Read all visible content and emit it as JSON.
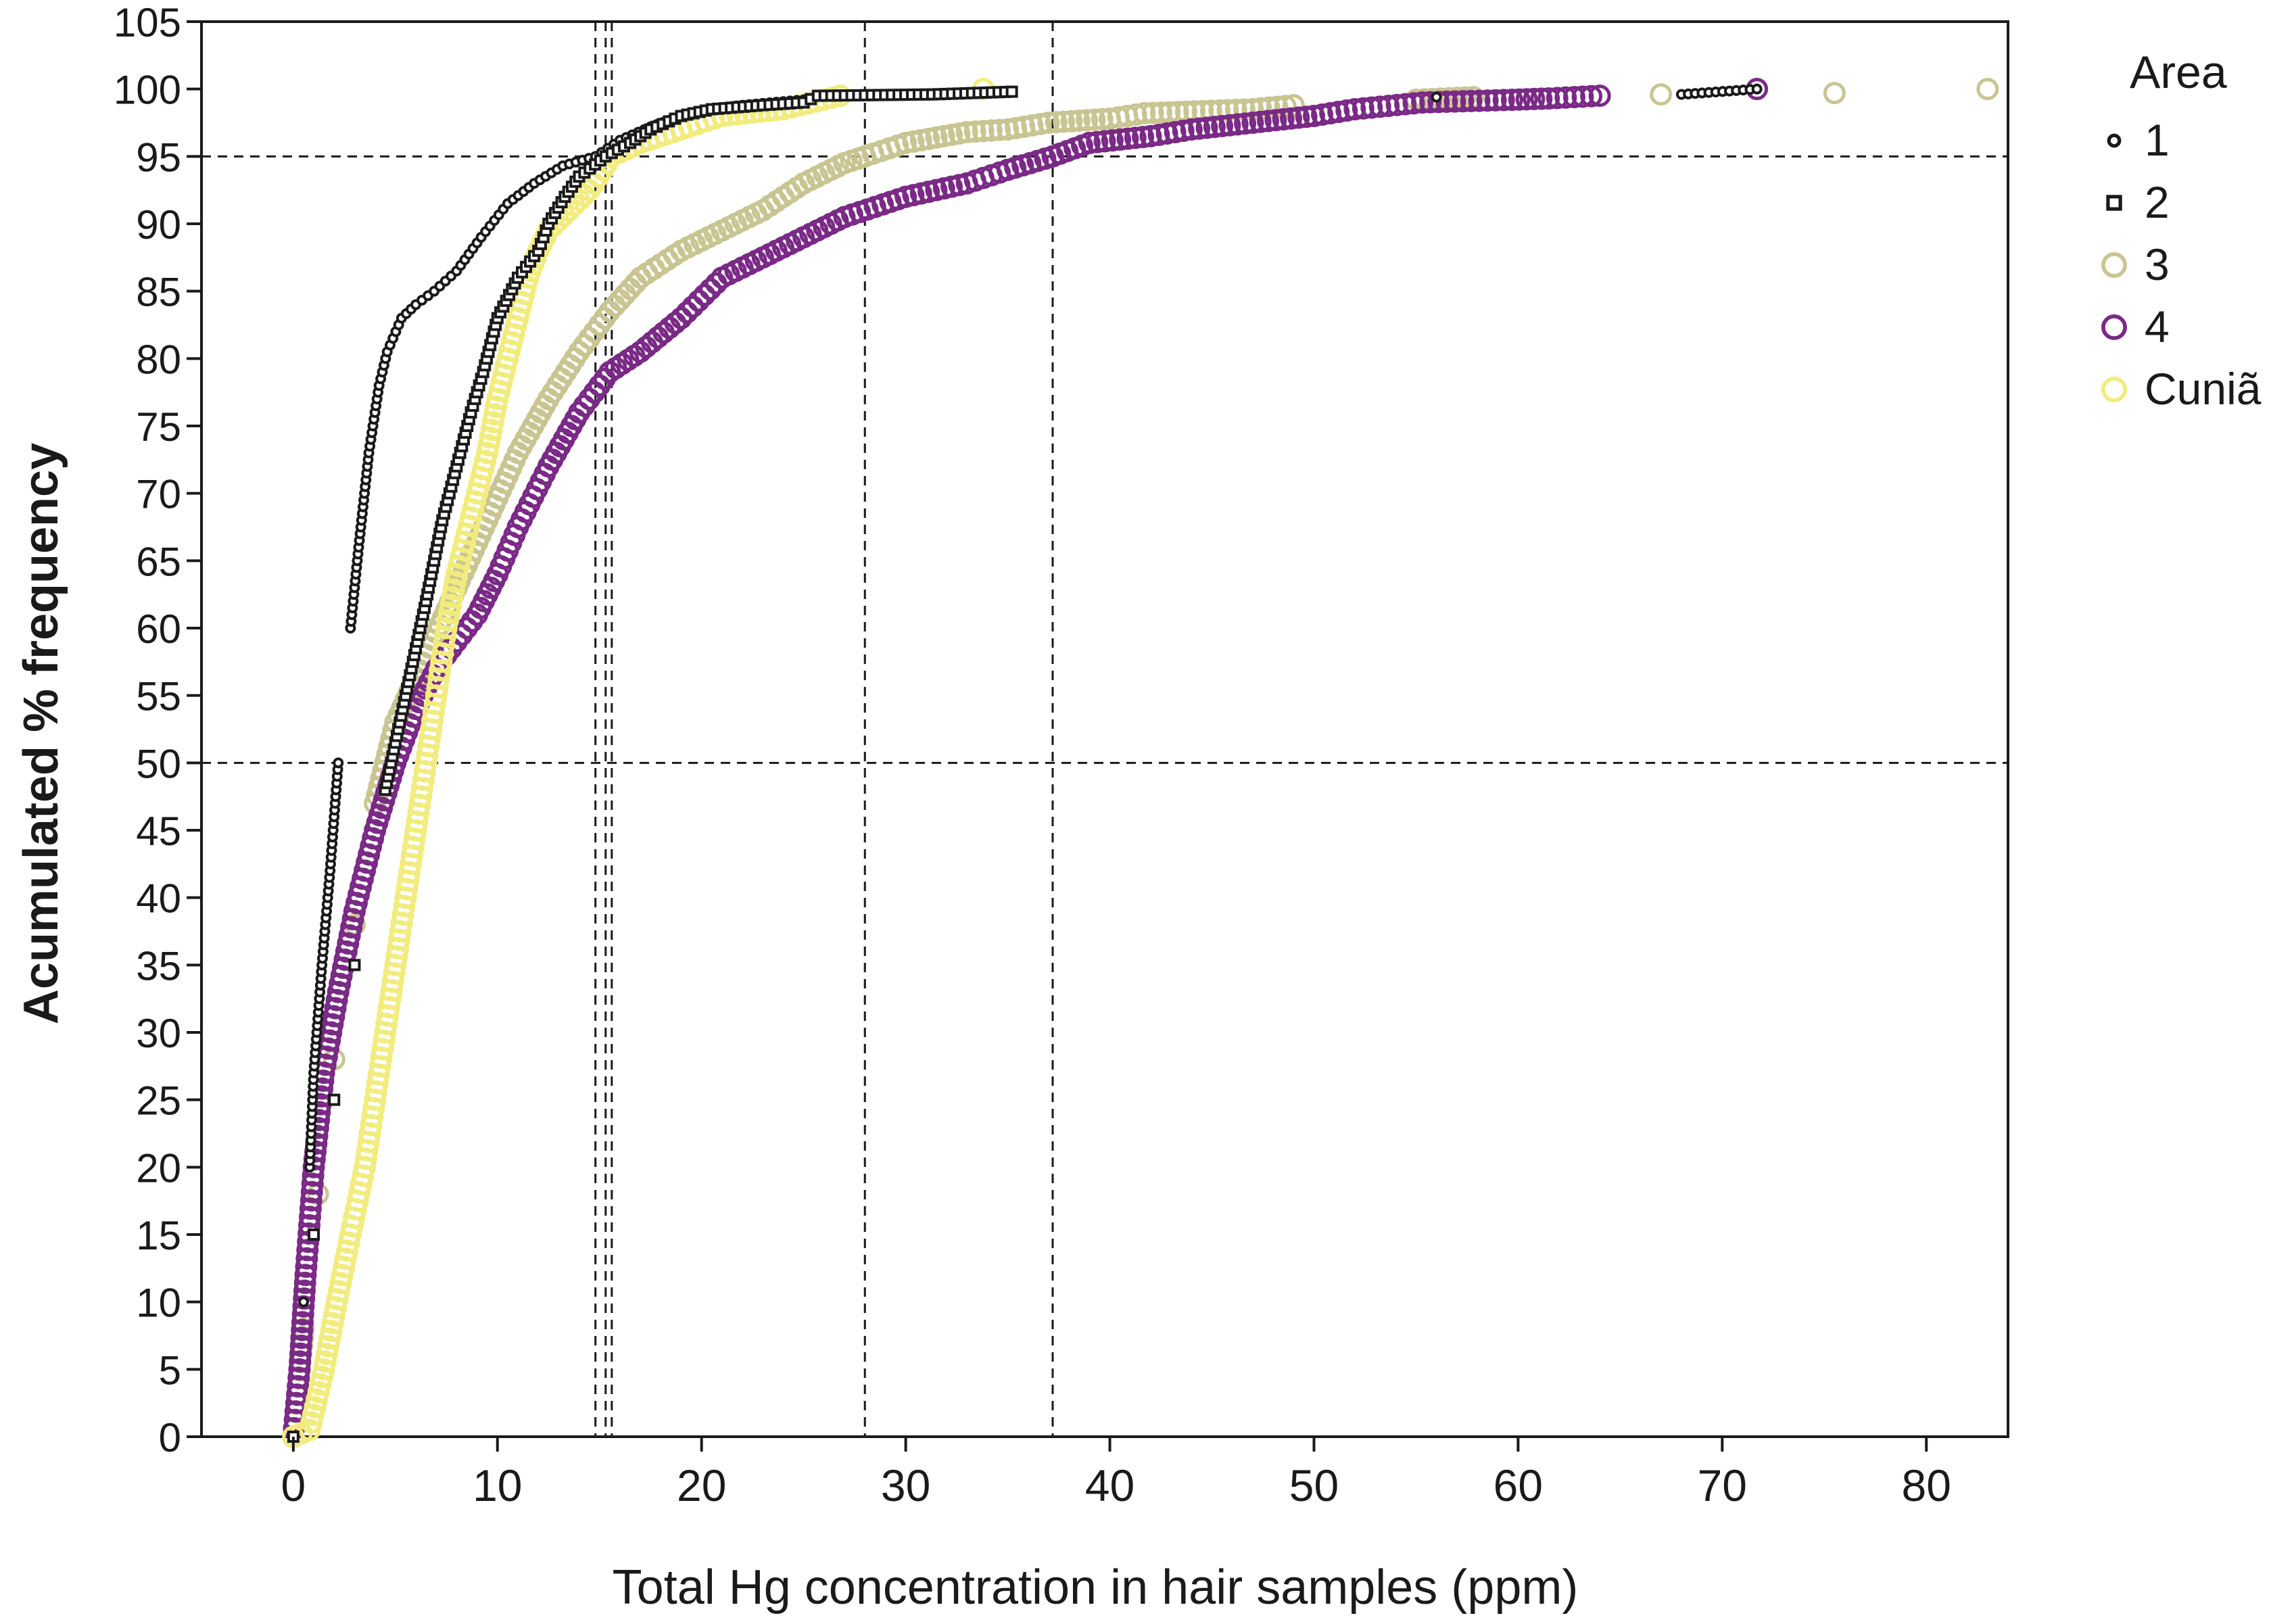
{
  "chart_data": {
    "type": "scatter",
    "title": "",
    "xlabel": "Total Hg concentration in hair samples (ppm)",
    "ylabel": "Acumulated % frequency",
    "xlim": [
      -4.5,
      84
    ],
    "ylim": [
      0,
      105
    ],
    "x_ticks": [
      "0",
      "10",
      "20",
      "30",
      "40",
      "50",
      "60",
      "70",
      "80"
    ],
    "y_ticks": [
      "0",
      "5",
      "10",
      "15",
      "20",
      "25",
      "30",
      "35",
      "40",
      "45",
      "50",
      "55",
      "60",
      "65",
      "70",
      "75",
      "80",
      "85",
      "90",
      "95",
      "100",
      "105"
    ],
    "reference_lines": {
      "horizontal": [
        50,
        95
      ],
      "vertical": [
        14.8,
        15.3,
        15.6,
        28,
        37.2
      ]
    },
    "legend": {
      "title": "Area",
      "position": "right",
      "entries": [
        {
          "label": "1",
          "marker": "dot",
          "color": "#1a1a1a"
        },
        {
          "label": "2",
          "marker": "square",
          "color": "#1a1a1a"
        },
        {
          "label": "3",
          "marker": "circle",
          "color": "#c9c592"
        },
        {
          "label": "4",
          "marker": "circle",
          "color": "#7a2a86"
        },
        {
          "label": "Cuniã",
          "marker": "circle",
          "color": "#f2ec7e"
        }
      ]
    },
    "series": [
      {
        "name": "1",
        "marker": "dot",
        "color": "#1a1a1a",
        "points": [
          [
            0,
            0
          ],
          [
            0.5,
            10
          ],
          [
            0.8,
            20
          ],
          [
            1.0,
            27
          ],
          [
            1.4,
            35
          ],
          [
            1.8,
            42
          ],
          [
            2.2,
            50
          ],
          [
            2.8,
            60
          ],
          [
            3.2,
            66
          ],
          [
            3.7,
            73
          ],
          [
            4.2,
            78
          ],
          [
            4.6,
            80.5
          ],
          [
            5.3,
            83
          ],
          [
            6.0,
            84
          ],
          [
            6.9,
            85
          ],
          [
            8.0,
            86.5
          ],
          [
            9.2,
            89
          ],
          [
            10.5,
            91.5
          ],
          [
            11.8,
            93
          ],
          [
            13.2,
            94.3
          ],
          [
            14.8,
            95
          ],
          [
            16.0,
            96.2
          ],
          [
            17.5,
            97.2
          ],
          [
            19.0,
            98
          ],
          [
            20.5,
            98.5
          ],
          [
            22.0,
            98.8
          ],
          [
            25.0,
            99.2
          ],
          [
            56.0,
            99.4
          ],
          [
            68.0,
            99.6
          ],
          [
            71.7,
            100
          ]
        ]
      },
      {
        "name": "2",
        "marker": "square",
        "color": "#1a1a1a",
        "points": [
          [
            0,
            0
          ],
          [
            1.0,
            15
          ],
          [
            2.0,
            25
          ],
          [
            3.0,
            35
          ],
          [
            4.5,
            48
          ],
          [
            5.5,
            55
          ],
          [
            6.5,
            62
          ],
          [
            7.3,
            68
          ],
          [
            8.0,
            72
          ],
          [
            8.7,
            76
          ],
          [
            9.3,
            79
          ],
          [
            10.0,
            83
          ],
          [
            11.0,
            86
          ],
          [
            12.0,
            88
          ],
          [
            12.5,
            90
          ],
          [
            13.3,
            92
          ],
          [
            14.0,
            93.5
          ],
          [
            15.3,
            95
          ],
          [
            16.5,
            96
          ],
          [
            17.5,
            97
          ],
          [
            19.0,
            98
          ],
          [
            20.5,
            98.5
          ],
          [
            23.0,
            98.8
          ],
          [
            25.0,
            99
          ],
          [
            25.7,
            99.5
          ],
          [
            31.3,
            99.6
          ],
          [
            35.2,
            99.8
          ]
        ]
      },
      {
        "name": "3",
        "marker": "circle",
        "color": "#c9c592",
        "points": [
          [
            0,
            0
          ],
          [
            0.5,
            8
          ],
          [
            1.2,
            18
          ],
          [
            2.0,
            28
          ],
          [
            3.0,
            38
          ],
          [
            4.0,
            47
          ],
          [
            5.0,
            53
          ],
          [
            6.5,
            58
          ],
          [
            8.0,
            63
          ],
          [
            9.5,
            68
          ],
          [
            11.0,
            73
          ],
          [
            12.5,
            77
          ],
          [
            14.0,
            80.5
          ],
          [
            15.5,
            83.5
          ],
          [
            17.0,
            86
          ],
          [
            19.0,
            88
          ],
          [
            21.0,
            89.5
          ],
          [
            23.0,
            91
          ],
          [
            25.0,
            93
          ],
          [
            27.0,
            94.5
          ],
          [
            28.0,
            95
          ],
          [
            30.0,
            96
          ],
          [
            33.0,
            96.8
          ],
          [
            35.0,
            97
          ],
          [
            37.0,
            97.5
          ],
          [
            40.0,
            97.8
          ],
          [
            41.7,
            98.2
          ],
          [
            47.0,
            98.5
          ],
          [
            49.0,
            98.8
          ],
          [
            55.0,
            99.2
          ],
          [
            57.8,
            99.4
          ],
          [
            67.0,
            99.6
          ],
          [
            75.5,
            99.7
          ],
          [
            83.0,
            100
          ]
        ]
      },
      {
        "name": "4",
        "marker": "circle",
        "color": "#7a2a86",
        "points": [
          [
            0,
            0
          ],
          [
            0.3,
            5
          ],
          [
            0.6,
            12
          ],
          [
            1.0,
            20
          ],
          [
            1.5,
            27
          ],
          [
            2.2,
            33
          ],
          [
            3.0,
            39
          ],
          [
            4.0,
            45
          ],
          [
            5.0,
            50
          ],
          [
            6.0,
            54
          ],
          [
            7.0,
            57
          ],
          [
            8.0,
            59
          ],
          [
            9.0,
            61
          ],
          [
            10.0,
            64
          ],
          [
            11.0,
            67.5
          ],
          [
            12.5,
            72
          ],
          [
            14.0,
            76
          ],
          [
            15.5,
            79
          ],
          [
            17.0,
            80.5
          ],
          [
            19.0,
            83
          ],
          [
            21.0,
            86
          ],
          [
            23.0,
            87.5
          ],
          [
            25.0,
            89
          ],
          [
            27.0,
            90.5
          ],
          [
            30.0,
            92
          ],
          [
            33.0,
            93
          ],
          [
            35.0,
            94
          ],
          [
            37.2,
            95
          ],
          [
            39.0,
            96
          ],
          [
            42.0,
            96.5
          ],
          [
            44.0,
            97
          ],
          [
            47.0,
            97.5
          ],
          [
            50.0,
            98
          ],
          [
            52.0,
            98.5
          ],
          [
            55.3,
            99
          ],
          [
            59.7,
            99.2
          ],
          [
            61.5,
            99.3
          ],
          [
            64.0,
            99.5
          ],
          [
            71.7,
            100
          ]
        ]
      },
      {
        "name": "Cuniã",
        "marker": "circle",
        "color": "#f2ec7e",
        "points": [
          [
            0,
            0
          ],
          [
            0.8,
            0.5
          ],
          [
            1.5,
            5
          ],
          [
            2.0,
            9
          ],
          [
            2.8,
            15
          ],
          [
            3.5,
            20
          ],
          [
            4.0,
            25
          ],
          [
            4.5,
            30
          ],
          [
            5.0,
            35
          ],
          [
            5.5,
            40
          ],
          [
            6.0,
            45
          ],
          [
            6.5,
            50
          ],
          [
            7.0,
            55
          ],
          [
            7.5,
            60
          ],
          [
            8.0,
            64
          ],
          [
            8.5,
            67
          ],
          [
            9.0,
            70
          ],
          [
            9.5,
            73
          ],
          [
            10.0,
            77
          ],
          [
            10.5,
            80
          ],
          [
            11.0,
            83
          ],
          [
            11.5,
            86
          ],
          [
            12.0,
            88
          ],
          [
            12.5,
            89.5
          ],
          [
            13.5,
            91
          ],
          [
            14.5,
            92.5
          ],
          [
            15.6,
            95
          ],
          [
            17.0,
            96
          ],
          [
            19.0,
            97
          ],
          [
            21.0,
            98
          ],
          [
            24.0,
            98.5
          ],
          [
            26.8,
            99.5
          ],
          [
            33.8,
            100
          ]
        ]
      }
    ]
  }
}
